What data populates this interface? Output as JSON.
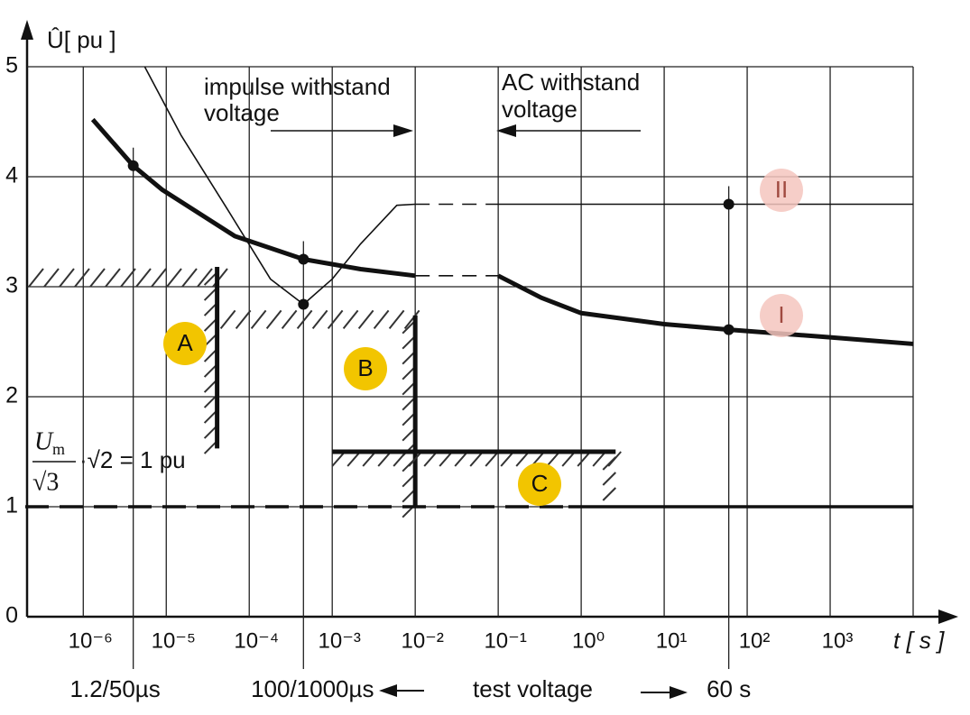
{
  "chart_data": {
    "type": "line",
    "xscale": "log",
    "xlim": [
      2e-07,
      10000
    ],
    "ylim": [
      0,
      5
    ],
    "yticks": [
      0,
      1,
      2,
      3,
      4,
      5
    ],
    "xticks": [
      {
        "value": 1e-06,
        "label": "10⁻⁶"
      },
      {
        "value": 1e-05,
        "label": "10⁻⁵"
      },
      {
        "value": 0.0001,
        "label": "10⁻⁴"
      },
      {
        "value": 0.001,
        "label": "10⁻³"
      },
      {
        "value": 0.01,
        "label": "10⁻²"
      },
      {
        "value": 0.1,
        "label": "10⁻¹"
      },
      {
        "value": 1,
        "label": "10⁰"
      },
      {
        "value": 10,
        "label": "10¹"
      },
      {
        "value": 100,
        "label": "10²"
      },
      {
        "value": 1000,
        "label": "10³"
      },
      {
        "value": 10000,
        "label": null
      }
    ],
    "grid": true,
    "ylabel": "Û[ pu ]",
    "xlabel": "t [ s ]",
    "series": [
      {
        "name": "I",
        "color": "#111111",
        "style": "thick",
        "x": [
          1.3e-06,
          4e-06,
          9e-06,
          6.7e-05,
          0.00045,
          0.0022,
          0.01
        ],
        "values": [
          4.52,
          4.1,
          3.88,
          3.46,
          3.25,
          3.16,
          3.1
        ]
      },
      {
        "color": "#111111",
        "style": "dashed",
        "x": [
          0.01,
          0.1
        ],
        "values": [
          3.1,
          3.1
        ]
      },
      {
        "color": "#111111",
        "style": "thick",
        "x": [
          0.1,
          0.33,
          1,
          10,
          60,
          1000,
          10000
        ],
        "values": [
          3.1,
          2.9,
          2.76,
          2.66,
          2.61,
          2.54,
          2.48
        ]
      },
      {
        "name": "II",
        "color": "#111111",
        "style": "thin",
        "x": [
          5.5e-06,
          1.5e-05,
          5.3e-05,
          0.00018,
          0.00045,
          0.001,
          0.0022,
          0.006,
          0.01
        ],
        "values": [
          5,
          4.38,
          3.72,
          3.07,
          2.84,
          3.07,
          3.39,
          3.74,
          3.75
        ]
      },
      {
        "color": "#111111",
        "style": "dashed",
        "x": [
          0.01,
          0.1
        ],
        "values": [
          3.75,
          3.75
        ]
      },
      {
        "color": "#111111",
        "style": "thin",
        "x": [
          0.1,
          10000
        ],
        "values": [
          3.75,
          3.75
        ]
      },
      {
        "color": "#111111",
        "style": "medium dashed",
        "x": [
          2e-07,
          0.7
        ],
        "values": [
          1,
          1
        ]
      },
      {
        "color": "#111111",
        "style": "medium",
        "x": [
          0.7,
          10000
        ],
        "values": [
          1,
          1
        ]
      }
    ],
    "boundaries": [
      {
        "style": "hatch-above",
        "x": [
          2e-07,
          4.1e-05
        ],
        "values": [
          3.0,
          3.0
        ]
      },
      {
        "style": "thick hatch-left",
        "x": [
          4.1e-05,
          4.1e-05
        ],
        "values": [
          3.18,
          1.53
        ]
      },
      {
        "style": "hatch-above",
        "x": [
          4.1e-05,
          0.01
        ],
        "values": [
          2.62,
          2.62
        ]
      },
      {
        "style": "thick hatch-left",
        "x": [
          0.01,
          0.01
        ],
        "values": [
          2.74,
          1.0
        ]
      },
      {
        "style": "thick hatch-below",
        "x": [
          0.001,
          2.6
        ],
        "values": [
          1.5,
          1.5
        ]
      },
      {
        "style": "hatch-left",
        "x": [
          2.6,
          2.6
        ],
        "values": [
          1.5,
          1.1
        ]
      }
    ],
    "markers": {
      "x": [
        4e-06,
        0.00045,
        0.00045,
        60,
        60
      ],
      "values": [
        4.1,
        3.25,
        2.84,
        3.75,
        2.61
      ]
    },
    "regions": [
      {
        "label": "A",
        "color": "#f2c500"
      },
      {
        "label": "B",
        "color": "#f2c500"
      },
      {
        "label": "C",
        "color": "#f2c500"
      },
      {
        "label": "II",
        "color": "#f4c6be"
      },
      {
        "label": "I",
        "color": "#f4c6be"
      }
    ],
    "reference_lines": {
      "x": [
        4e-06,
        0.00045,
        60
      ],
      "labels": [
        "1.2/50µs",
        "100/1000µs",
        "60 s"
      ]
    },
    "annotations": {
      "impulse": [
        "impulse withstand",
        "voltage"
      ],
      "ac": [
        "AC withstand",
        "voltage"
      ],
      "test_voltage": "test voltage",
      "formula": {
        "u": "U",
        "sub": "m",
        "denominator": "√3",
        "rest": "·√2 = 1 pu"
      }
    }
  }
}
